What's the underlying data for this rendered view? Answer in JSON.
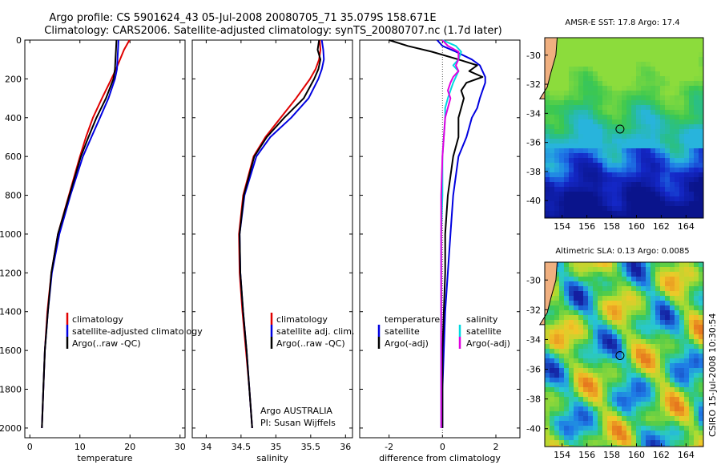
{
  "figure": {
    "title_line1": "Argo profile: CS 5901624_43 05-Jul-2008 20080705_71 35.079S 158.671E",
    "title_line2": "Climatology: CARS2006. Satellite-adjusted climatology: synTS_20080707.nc (1.7d later)",
    "credit": "Argo AUSTRALIA",
    "pi": "PI: Susan Wijffels",
    "stamp": "CSIRO 15-Jul-2008 10:30:54"
  },
  "colors": {
    "climatology": "#e00000",
    "satellite": "#0000e0",
    "argo": "#000000",
    "sat_salinity": "#00d8e0",
    "argo_salinity": "#e000e0",
    "land": "#f0b080"
  },
  "chart_data": [
    {
      "id": "temperature",
      "type": "line",
      "xlabel": "temperature",
      "ylabel": "",
      "xlim": [
        -1,
        31
      ],
      "ylim": [
        2050,
        0
      ],
      "x_ticks": [
        "0",
        "10",
        "20",
        "30"
      ],
      "y_ticks": [
        "0",
        "200",
        "400",
        "600",
        "800",
        "1000",
        "1200",
        "1400",
        "1600",
        "1800",
        "2000"
      ],
      "depth": [
        0,
        50,
        100,
        150,
        200,
        300,
        400,
        500,
        600,
        800,
        1000,
        1200,
        1400,
        1600,
        1800,
        2000
      ],
      "series": [
        {
          "name": "climatology",
          "color_key": "climatology",
          "values": [
            19.9,
            18.8,
            18.0,
            17.2,
            16.3,
            14.4,
            12.6,
            11.2,
            10.0,
            7.8,
            5.6,
            4.3,
            3.5,
            3.0,
            2.7,
            2.4
          ]
        },
        {
          "name": "satellite-adjusted climatology",
          "color_key": "satellite",
          "values": [
            17.7,
            17.6,
            17.5,
            17.4,
            17.0,
            15.7,
            14.0,
            12.3,
            10.6,
            8.1,
            5.9,
            4.4,
            3.6,
            3.0,
            2.7,
            2.4
          ]
        },
        {
          "name": "Argo(..raw -QC)",
          "color_key": "argo",
          "values": [
            17.3,
            17.2,
            17.1,
            17.0,
            16.7,
            15.2,
            13.3,
            11.7,
            10.2,
            7.9,
            5.6,
            4.3,
            3.6,
            3.0,
            2.7,
            2.4
          ]
        }
      ],
      "legend_labels": [
        "climatology",
        "satellite-adjusted climatology",
        "Argo(..raw -QC)"
      ]
    },
    {
      "id": "salinity",
      "type": "line",
      "xlabel": "salinity",
      "ylabel": "",
      "xlim": [
        33.8,
        36.1
      ],
      "ylim": [
        2050,
        0
      ],
      "x_ticks": [
        "34",
        "34.5",
        "35",
        "35.5",
        "36"
      ],
      "depth": [
        0,
        50,
        100,
        150,
        200,
        300,
        400,
        500,
        600,
        800,
        1000,
        1200,
        1400,
        1600,
        1800,
        2000
      ],
      "series": [
        {
          "name": "climatology",
          "color_key": "climatology",
          "values": [
            35.63,
            35.64,
            35.62,
            35.57,
            35.49,
            35.29,
            35.07,
            34.85,
            34.68,
            34.53,
            34.47,
            34.48,
            34.52,
            34.57,
            34.62,
            34.66
          ]
        },
        {
          "name": "satellite adj. clim.",
          "color_key": "satellite",
          "values": [
            35.66,
            35.68,
            35.69,
            35.66,
            35.61,
            35.47,
            35.22,
            34.92,
            34.72,
            34.55,
            34.48,
            34.49,
            34.53,
            34.58,
            34.62,
            34.66
          ]
        },
        {
          "name": "Argo(..raw -QC)",
          "color_key": "argo",
          "values": [
            35.62,
            35.6,
            35.64,
            35.61,
            35.55,
            35.4,
            35.12,
            34.87,
            34.69,
            34.54,
            34.48,
            34.49,
            34.53,
            34.58,
            34.62,
            34.66
          ]
        }
      ],
      "legend_labels": [
        "climatology",
        "satellite adj. clim.",
        "Argo(..raw -QC)"
      ]
    },
    {
      "id": "difference",
      "type": "line",
      "xlabel": "difference from climatology",
      "ylabel": "",
      "xlim": [
        -3.1,
        2.9
      ],
      "ylim": [
        2050,
        0
      ],
      "x_ticks": [
        "-2",
        "0",
        "2"
      ],
      "depth": [
        0,
        30,
        60,
        100,
        130,
        160,
        190,
        220,
        260,
        300,
        350,
        400,
        500,
        600,
        800,
        1000,
        1200,
        1400,
        1600,
        1800,
        2000
      ],
      "series": [
        {
          "name": "temperature satellite",
          "color_key": "satellite",
          "values": [
            -0.2,
            0.0,
            0.5,
            1.1,
            1.4,
            1.5,
            1.6,
            1.6,
            1.5,
            1.4,
            1.3,
            1.1,
            0.9,
            0.6,
            0.4,
            0.3,
            0.2,
            0.1,
            0.05,
            0.0,
            0.0
          ]
        },
        {
          "name": "temperature Argo(-adj)",
          "color_key": "argo",
          "values": [
            -2.0,
            -1.3,
            -0.4,
            0.6,
            1.3,
            1.0,
            1.5,
            0.9,
            0.7,
            0.8,
            0.7,
            0.6,
            0.6,
            0.4,
            0.2,
            0.1,
            0.1,
            0.05,
            0.0,
            0.0,
            0.0
          ]
        },
        {
          "name": "salinity satellite",
          "color_key": "sat_salinity",
          "values": [
            0.0,
            0.5,
            0.7,
            0.6,
            0.4,
            0.6,
            0.5,
            0.4,
            0.3,
            0.2,
            0.1,
            0.1,
            0.05,
            0.0,
            0.0,
            -0.05,
            -0.05,
            -0.05,
            -0.05,
            -0.05,
            -0.05
          ]
        },
        {
          "name": "salinity Argo(-adj)",
          "color_key": "argo_salinity",
          "values": [
            0.0,
            0.2,
            0.6,
            0.6,
            0.5,
            0.6,
            0.4,
            0.3,
            0.2,
            0.3,
            0.2,
            0.1,
            0.05,
            0.0,
            -0.05,
            -0.05,
            -0.05,
            -0.05,
            -0.05,
            -0.05,
            -0.05
          ]
        }
      ],
      "legend_headers": [
        "temperature",
        "salinity"
      ],
      "legend_labels": [
        "satellite",
        "Argo(-adj)",
        "satellite",
        "Argo(-adj)"
      ]
    },
    {
      "id": "sst-map",
      "type": "heatmap",
      "title": "AMSR-E SST: 17.8 Argo: 17.4",
      "x_ticks": [
        "154",
        "156",
        "158",
        "160",
        "162",
        "164"
      ],
      "y_ticks": [
        "-30",
        "-32",
        "-34",
        "-36",
        "-38",
        "-40"
      ],
      "xlim": [
        152.6,
        165.4
      ],
      "ylim": [
        -41.2,
        -28.8
      ],
      "marker": {
        "lon": 158.67,
        "lat": -35.08
      }
    },
    {
      "id": "sla-map",
      "type": "heatmap",
      "title": "Altimetric SLA: 0.13 Argo: 0.0085",
      "x_ticks": [
        "154",
        "156",
        "158",
        "160",
        "162",
        "164"
      ],
      "y_ticks": [
        "-30",
        "-32",
        "-34",
        "-36",
        "-38",
        "-40"
      ],
      "xlim": [
        152.6,
        165.4
      ],
      "ylim": [
        -41.2,
        -28.8
      ],
      "marker": {
        "lon": 158.67,
        "lat": -35.08
      }
    }
  ]
}
